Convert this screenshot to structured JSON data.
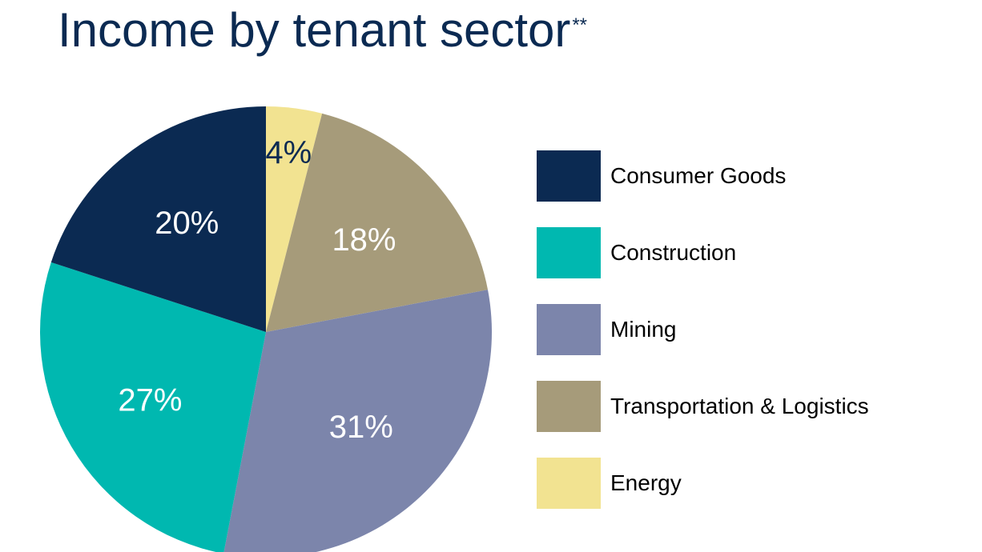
{
  "title": {
    "text": "Income by tenant sector",
    "superscript": "**"
  },
  "chart_data": {
    "type": "pie",
    "title": "Income by tenant sector**",
    "start_angle_deg": 0,
    "direction": "clockwise",
    "slices": [
      {
        "label": "Energy",
        "value": 4,
        "value_label": "4%",
        "color": "#f2e391",
        "label_color": "#0b2a52"
      },
      {
        "label": "Transportation & Logistics",
        "value": 18,
        "value_label": "18%",
        "color": "#a69b7a",
        "label_color": "#ffffff"
      },
      {
        "label": "Mining",
        "value": 31,
        "value_label": "31%",
        "color": "#7c85ab",
        "label_color": "#ffffff"
      },
      {
        "label": "Construction",
        "value": 27,
        "value_label": "27%",
        "color": "#00b8b0",
        "label_color": "#ffffff"
      },
      {
        "label": "Consumer Goods",
        "value": 20,
        "value_label": "20%",
        "color": "#0b2a52",
        "label_color": "#ffffff"
      }
    ],
    "legend": {
      "placement": "right",
      "entries": [
        {
          "label": "Consumer Goods",
          "color": "#0b2a52"
        },
        {
          "label": "Construction",
          "color": "#00b8b0"
        },
        {
          "label": "Mining",
          "color": "#7c85ab"
        },
        {
          "label": "Transportation & Logistics",
          "color": "#a69b7a"
        },
        {
          "label": "Energy",
          "color": "#f2e391"
        }
      ]
    }
  }
}
